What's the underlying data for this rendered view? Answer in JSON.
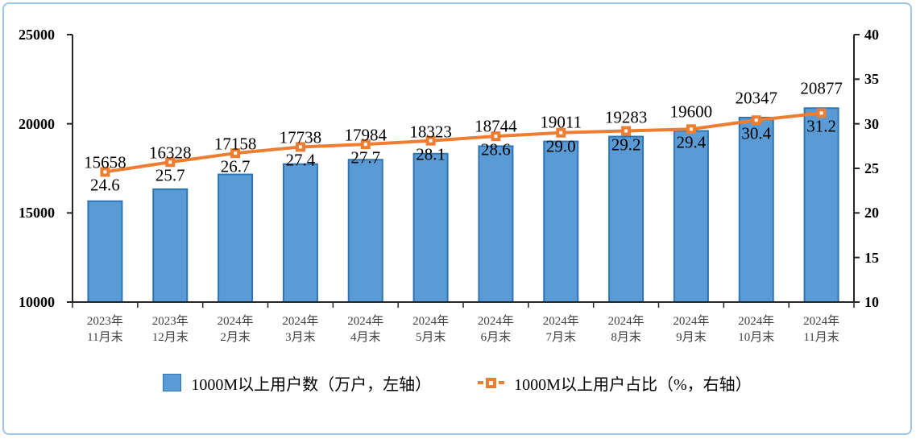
{
  "chart_data": {
    "type": "combo",
    "title": "",
    "categories": [
      [
        "2023年",
        "11月末"
      ],
      [
        "2023年",
        "12月末"
      ],
      [
        "2024年",
        "2月末"
      ],
      [
        "2024年",
        "3月末"
      ],
      [
        "2024年",
        "4月末"
      ],
      [
        "2024年",
        "5月末"
      ],
      [
        "2024年",
        "6月末"
      ],
      [
        "2024年",
        "7月末"
      ],
      [
        "2024年",
        "8月末"
      ],
      [
        "2024年",
        "9月末"
      ],
      [
        "2024年",
        "10月末"
      ],
      [
        "2024年",
        "11月末"
      ]
    ],
    "series": [
      {
        "name": "1000M以上用户数（万户，左轴）",
        "type": "bar",
        "axis": "left",
        "values": [
          15658,
          16328,
          17158,
          17738,
          17984,
          18323,
          18744,
          19011,
          19283,
          19600,
          20347,
          20877
        ],
        "labels": [
          "15658",
          "16328",
          "17158",
          "17738",
          "17984",
          "18323",
          "18744",
          "19011",
          "19283",
          "19600",
          "20347",
          "20877"
        ]
      },
      {
        "name": "1000M以上用户占比（%，右轴）",
        "type": "line",
        "axis": "right",
        "values": [
          24.6,
          25.7,
          26.7,
          27.4,
          27.7,
          28.1,
          28.6,
          29.0,
          29.2,
          29.4,
          30.4,
          31.2
        ],
        "labels": [
          "24.6",
          "25.7",
          "26.7",
          "27.4",
          "27.7",
          "28.1",
          "28.6",
          "29.0",
          "29.2",
          "29.4",
          "30.4",
          "31.2"
        ]
      }
    ],
    "left_axis": {
      "min": 10000,
      "max": 25000,
      "ticks": [
        25000,
        20000,
        15000,
        10000
      ]
    },
    "right_axis": {
      "min": 10,
      "max": 40,
      "ticks": [
        40,
        35,
        30,
        25,
        20,
        15,
        10
      ]
    },
    "grid": false,
    "legend_position": "bottom"
  },
  "colors": {
    "bar_fill": "#5B9BD5",
    "bar_border": "#2E75B6",
    "line": "#ED7D31",
    "marker_center": "#FFFFFF",
    "axis": "#262626",
    "frame_border": "#9DC3E6",
    "x_label": "#404040",
    "text": "#000000"
  }
}
